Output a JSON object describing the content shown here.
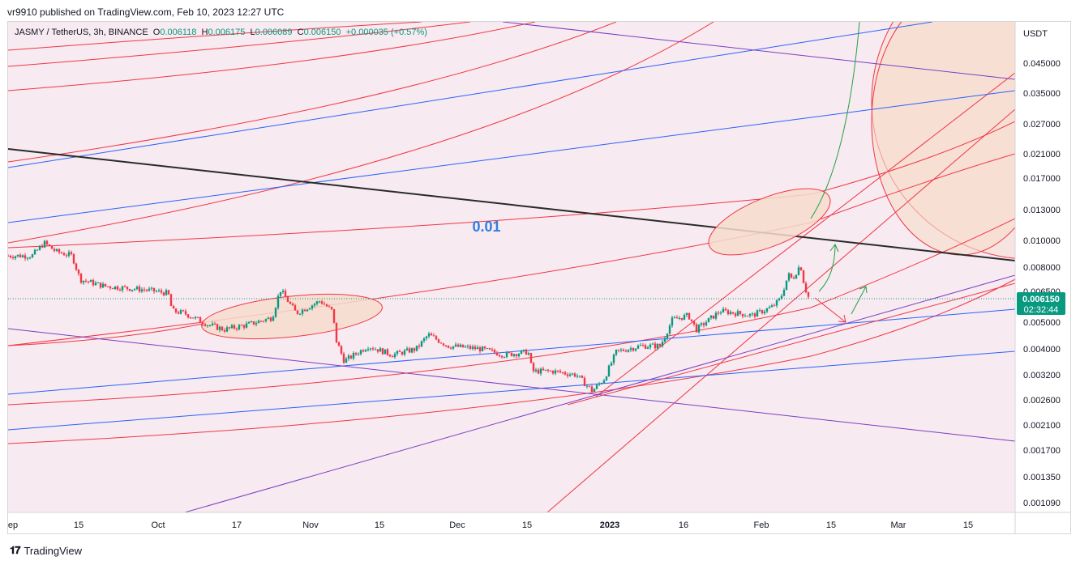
{
  "published": "vr9910 published on TradingView.com, Feb 10, 2023 12:27 UTC",
  "symbol": {
    "name": "JASMY / TetherUS, 3h, BINANCE",
    "open_label": "O",
    "open": "0.006118",
    "high_label": "H",
    "high": "0.006175",
    "low_label": "L",
    "low": "0.006089",
    "close_label": "C",
    "close": "0.006150",
    "change": "+0.000035 (+0.57%)"
  },
  "footer_brand": "TradingView",
  "colors": {
    "background_tint": "#f7eaf0",
    "ellipse_fill": "#f6dccc",
    "red": "#f23645",
    "blue": "#2962ff",
    "purple": "#7b3fc4",
    "green": "#089981",
    "black_line": "#2a2a2a",
    "label_blue": "#2f7ee0"
  },
  "chart_data": {
    "type": "candlestick",
    "title": "JASMY / TetherUS, 3h, BINANCE",
    "currency": "USDT",
    "y_scale": "log",
    "ylim": [
      0.001,
      0.06
    ],
    "y_ticks": [
      "0.045000",
      "0.035000",
      "0.027000",
      "0.021000",
      "0.017000",
      "0.013000",
      "0.010000",
      "0.008000",
      "0.006500",
      "0.005000",
      "0.004000",
      "0.003200",
      "0.002600",
      "0.002100",
      "0.001700",
      "0.001350",
      "0.001090"
    ],
    "x_ticks": [
      "ep",
      "15",
      "Oct",
      "17",
      "Nov",
      "15",
      "Dec",
      "15",
      "2023",
      "16",
      "Feb",
      "15",
      "Mar",
      "15"
    ],
    "last_price": "0.006150",
    "countdown": "02:32:44",
    "annotation": "0.01",
    "price_path": [
      [
        0.0,
        0.0088
      ],
      [
        0.03,
        0.0088
      ],
      [
        0.045,
        0.0098
      ],
      [
        0.06,
        0.0091
      ],
      [
        0.08,
        0.0088
      ],
      [
        0.09,
        0.0072
      ],
      [
        0.12,
        0.0068
      ],
      [
        0.17,
        0.0066
      ],
      [
        0.2,
        0.0064
      ],
      [
        0.205,
        0.0055
      ],
      [
        0.22,
        0.0054
      ],
      [
        0.25,
        0.0049
      ],
      [
        0.27,
        0.0047
      ],
      [
        0.3,
        0.0049
      ],
      [
        0.33,
        0.0052
      ],
      [
        0.34,
        0.0066
      ],
      [
        0.36,
        0.0054
      ],
      [
        0.39,
        0.006
      ],
      [
        0.405,
        0.0055
      ],
      [
        0.41,
        0.0043
      ],
      [
        0.42,
        0.0036
      ],
      [
        0.45,
        0.0041
      ],
      [
        0.48,
        0.0038
      ],
      [
        0.51,
        0.004
      ],
      [
        0.525,
        0.0045
      ],
      [
        0.55,
        0.0041
      ],
      [
        0.59,
        0.004
      ],
      [
        0.62,
        0.0038
      ],
      [
        0.65,
        0.0039
      ],
      [
        0.655,
        0.0033
      ],
      [
        0.68,
        0.0033
      ],
      [
        0.71,
        0.0032
      ],
      [
        0.73,
        0.0028
      ],
      [
        0.745,
        0.0031
      ],
      [
        0.76,
        0.0039
      ],
      [
        0.79,
        0.0041
      ],
      [
        0.815,
        0.0041
      ],
      [
        0.83,
        0.0051
      ],
      [
        0.85,
        0.0053
      ],
      [
        0.86,
        0.0047
      ],
      [
        0.89,
        0.0055
      ],
      [
        0.93,
        0.0053
      ],
      [
        0.955,
        0.0057
      ],
      [
        0.965,
        0.0061
      ],
      [
        0.975,
        0.0075
      ],
      [
        0.98,
        0.0072
      ],
      [
        0.99,
        0.0082
      ],
      [
        0.995,
        0.0068
      ],
      [
        1.0,
        0.0062
      ]
    ]
  }
}
